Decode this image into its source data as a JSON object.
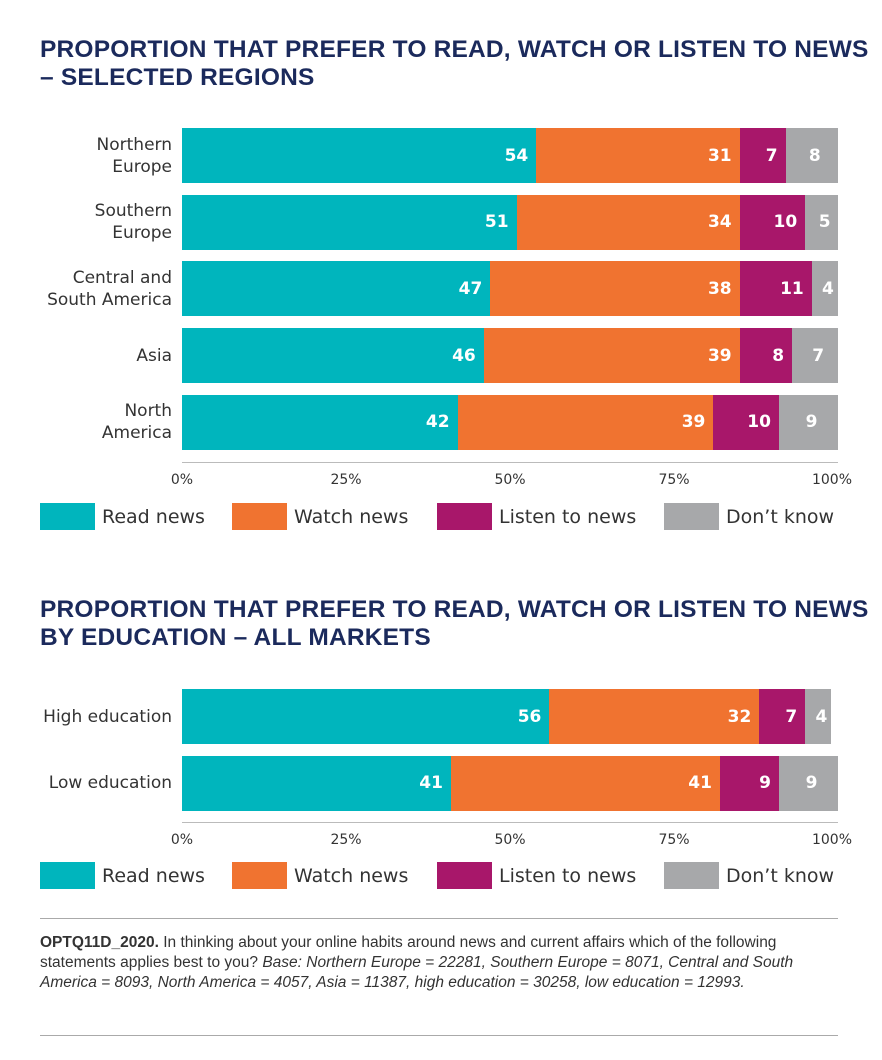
{
  "colors": {
    "read": "#00b5bd",
    "watch": "#f07330",
    "listen": "#a8176a",
    "dontknow": "#a7a8aa",
    "title": "#1b2a5c"
  },
  "chart_data": [
    {
      "type": "bar",
      "orientation": "horizontal",
      "stacked": true,
      "title": "PROPORTION THAT PREFER TO READ, WATCH OR LISTEN TO NEWS – SELECTED REGIONS",
      "categories": [
        "Northern Europe",
        "Southern Europe",
        "Central and South America",
        "Asia",
        "North America"
      ],
      "series": [
        {
          "name": "Read news",
          "values": [
            54,
            51,
            47,
            46,
            42
          ]
        },
        {
          "name": "Watch news",
          "values": [
            31,
            34,
            38,
            39,
            39
          ]
        },
        {
          "name": "Listen to news",
          "values": [
            7,
            10,
            11,
            8,
            10
          ]
        },
        {
          "name": "Don’t know",
          "values": [
            8,
            5,
            4,
            7,
            9
          ]
        }
      ],
      "xticks": [
        "0%",
        "25%",
        "50%",
        "75%",
        "100%"
      ],
      "xlim": [
        0,
        100
      ],
      "legend": "bottom"
    },
    {
      "type": "bar",
      "orientation": "horizontal",
      "stacked": true,
      "title": "PROPORTION THAT PREFER TO READ, WATCH OR LISTEN TO NEWS BY EDUCATION – ALL MARKETS",
      "categories": [
        "High education",
        "Low education"
      ],
      "series": [
        {
          "name": "Read news",
          "values": [
            56,
            41
          ]
        },
        {
          "name": "Watch news",
          "values": [
            32,
            41
          ]
        },
        {
          "name": "Listen to news",
          "values": [
            7,
            9
          ]
        },
        {
          "name": "Don’t know",
          "values": [
            4,
            9
          ]
        }
      ],
      "xticks": [
        "0%",
        "25%",
        "50%",
        "75%",
        "100%"
      ],
      "xlim": [
        0,
        100
      ],
      "legend": "bottom"
    }
  ],
  "note": {
    "code": "OPTQ11D_2020.",
    "question": " In thinking about your online habits around news and current affairs which of the following statements applies best to you? ",
    "base": "Base: Northern Europe = 22281, Southern Europe = 8071, Central and South America = 8093, North America = 4057, Asia = 11387, high education = 30258, low education = 12993."
  }
}
